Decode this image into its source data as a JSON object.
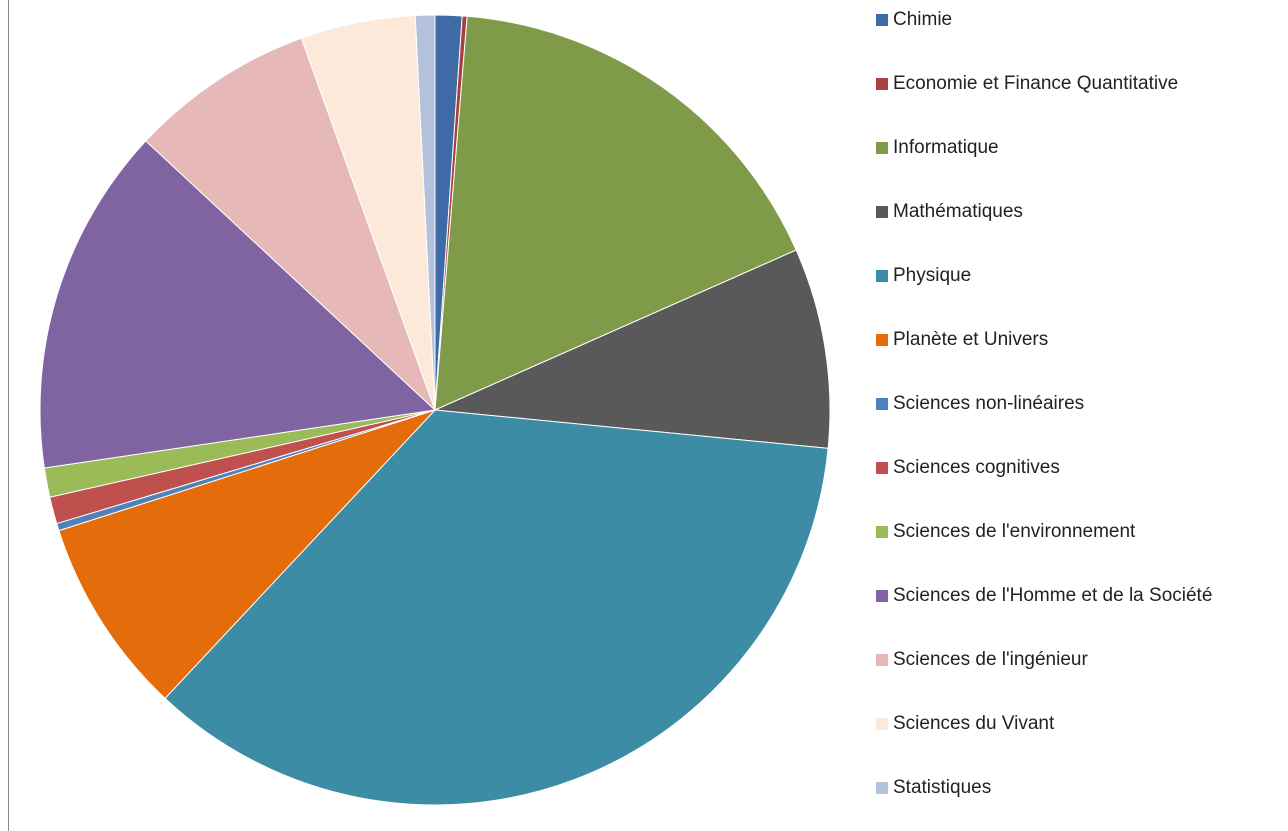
{
  "chart_data": {
    "type": "pie",
    "categories": [
      "Chimie",
      "Economie et Finance Quantitative",
      "Informatique",
      "Mathématiques",
      "Physique",
      "Planète et Univers",
      "Sciences non-linéaires",
      "Sciences cognitives",
      "Sciences de l'environnement",
      "Sciences de l'Homme et de la Société",
      "Sciences de l'ingénieur",
      "Sciences du Vivant",
      "Statistiques"
    ],
    "values": [
      1.1,
      0.2,
      17.1,
      8.2,
      35.5,
      8.1,
      0.3,
      1.1,
      1.2,
      14.3,
      7.6,
      4.7,
      0.8
    ],
    "colors": [
      "#3e6ba5",
      "#a8403d",
      "#7f9b4a",
      "#595959",
      "#3b8ca4",
      "#e46c0a",
      "#4f81bd",
      "#c0504d",
      "#9bbb59",
      "#8064a2",
      "#e6b9b8",
      "#fde9d9",
      "#b3c1db"
    ],
    "legend": "right"
  }
}
